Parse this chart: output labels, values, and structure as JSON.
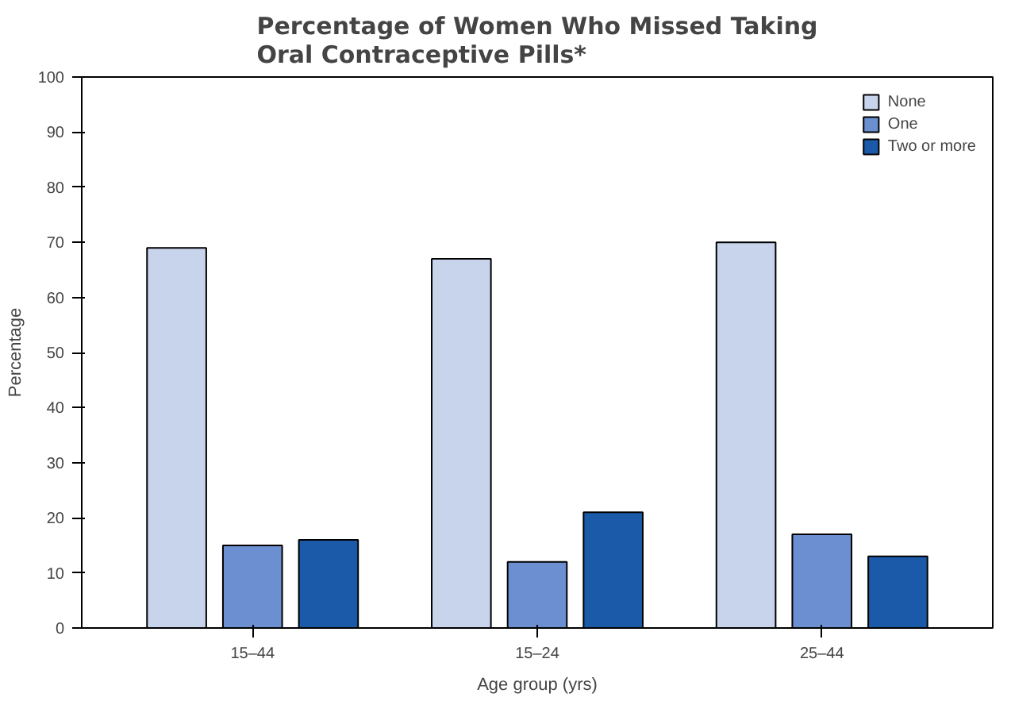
{
  "chart_data": {
    "type": "bar",
    "title": "Percentage of Women Who Missed Taking Oral Contraceptive Pills*",
    "xlabel": "Age group (yrs)",
    "ylabel": "Percentage",
    "categories": [
      "15–44",
      "15–24",
      "25–44"
    ],
    "series": [
      {
        "name": "None",
        "color": "#c8d4ec",
        "values": [
          69,
          67,
          70
        ]
      },
      {
        "name": "One",
        "color": "#6b8fd0",
        "values": [
          15,
          12,
          17
        ]
      },
      {
        "name": "Two or more",
        "color": "#1a5aa8",
        "values": [
          16,
          21,
          13
        ]
      }
    ],
    "ylim": [
      0,
      100
    ],
    "yticks": [
      0,
      10,
      20,
      30,
      40,
      50,
      60,
      70,
      80,
      90,
      100
    ],
    "grid": false,
    "legend": "top right"
  }
}
